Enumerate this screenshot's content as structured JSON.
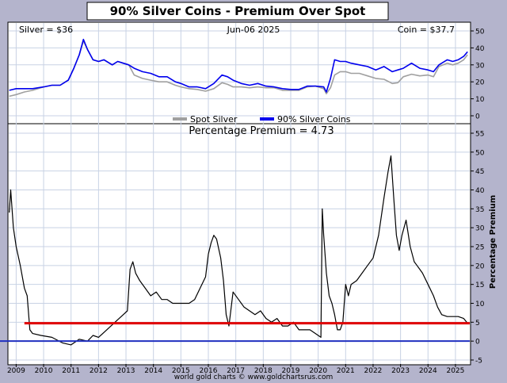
{
  "title": "90% Silver Coins - Premium Over Spot",
  "footer": "world gold charts © www.goldchartsrus.com",
  "colors": {
    "background": "#b4b4cc",
    "plot_bg": "#ffffff",
    "grid": "#c8d2e4",
    "spot": "#a0a0a0",
    "coin": "#0000ee",
    "premium": "#000000",
    "avg_line": "#e00000",
    "zero_line": "#2030c0"
  },
  "chart_data": [
    {
      "type": "line",
      "info_left": "Silver = $36",
      "info_center": "Jun-06  2025",
      "info_right": "Coin = $37.7",
      "y_ticks": [
        0,
        10,
        20,
        30,
        40,
        50
      ],
      "ylim": [
        -5,
        55
      ],
      "xlim": [
        2008.7,
        2025.55
      ],
      "legend": "bottom-center",
      "grid": true,
      "series": [
        {
          "name": "Spot Silver",
          "x": [
            2008.75,
            2009.0,
            2009.3,
            2009.6,
            2010.0,
            2010.3,
            2010.6,
            2010.9,
            2011.1,
            2011.3,
            2011.45,
            2011.6,
            2011.8,
            2012.0,
            2012.2,
            2012.5,
            2012.7,
            2012.9,
            2013.1,
            2013.3,
            2013.6,
            2013.9,
            2014.2,
            2014.5,
            2014.8,
            2015.0,
            2015.3,
            2015.6,
            2015.9,
            2016.2,
            2016.5,
            2016.7,
            2016.9,
            2017.2,
            2017.5,
            2017.8,
            2018.1,
            2018.4,
            2018.7,
            2019.0,
            2019.3,
            2019.6,
            2019.9,
            2020.2,
            2020.3,
            2020.45,
            2020.6,
            2020.8,
            2021.0,
            2021.2,
            2021.5,
            2021.8,
            2022.1,
            2022.4,
            2022.7,
            2022.9,
            2023.1,
            2023.4,
            2023.7,
            2024.0,
            2024.2,
            2024.4,
            2024.7,
            2024.9,
            2025.1,
            2025.3,
            2025.44
          ],
          "y": [
            11.5,
            12.5,
            14,
            15,
            17,
            18,
            18,
            21,
            28,
            36,
            44,
            39,
            33,
            32,
            33,
            30,
            32,
            31,
            30,
            24,
            22,
            21,
            20,
            20,
            18,
            17,
            16,
            15.5,
            14.5,
            16,
            19.5,
            18.5,
            17,
            17,
            16.5,
            17,
            16.5,
            16.5,
            15,
            15,
            15,
            17,
            17.5,
            16,
            13,
            16.5,
            24,
            26,
            26,
            25,
            25,
            23.5,
            22,
            21.5,
            19,
            19.5,
            23,
            24.5,
            23.5,
            24,
            23,
            29,
            31,
            30,
            31,
            33,
            36
          ]
        },
        {
          "name": "90% Silver Coins",
          "x": [
            2008.75,
            2009.0,
            2009.3,
            2009.6,
            2010.0,
            2010.3,
            2010.6,
            2010.9,
            2011.1,
            2011.3,
            2011.45,
            2011.6,
            2011.8,
            2012.0,
            2012.2,
            2012.5,
            2012.7,
            2012.9,
            2013.1,
            2013.3,
            2013.6,
            2013.9,
            2014.2,
            2014.5,
            2014.8,
            2015.0,
            2015.3,
            2015.6,
            2015.9,
            2016.2,
            2016.5,
            2016.7,
            2016.9,
            2017.2,
            2017.5,
            2017.8,
            2018.1,
            2018.4,
            2018.7,
            2019.0,
            2019.3,
            2019.6,
            2019.9,
            2020.2,
            2020.3,
            2020.45,
            2020.6,
            2020.8,
            2021.0,
            2021.2,
            2021.5,
            2021.8,
            2022.1,
            2022.4,
            2022.7,
            2022.9,
            2023.1,
            2023.4,
            2023.7,
            2024.0,
            2024.2,
            2024.4,
            2024.7,
            2024.9,
            2025.1,
            2025.3,
            2025.44
          ],
          "y": [
            15,
            16,
            16,
            16,
            17,
            18,
            18,
            21,
            28,
            36,
            45,
            39,
            33,
            32,
            33,
            30,
            32,
            31,
            30,
            28,
            26,
            25,
            23,
            23,
            20,
            19,
            17,
            17,
            16,
            19,
            24,
            23,
            21,
            19,
            18,
            19,
            17.5,
            17,
            16,
            15.5,
            15.5,
            17.5,
            17.5,
            17,
            14,
            22,
            33,
            32,
            32,
            31,
            30,
            29,
            27,
            29,
            26,
            27,
            28,
            31,
            28,
            27,
            26,
            30,
            33,
            32,
            33,
            35,
            37.7
          ]
        }
      ]
    },
    {
      "type": "line",
      "title": "Percentage Premium = 4.73",
      "ylabel": "Percentage Premium",
      "y_ticks": [
        -5,
        0,
        5,
        10,
        15,
        20,
        25,
        30,
        35,
        40,
        45,
        50,
        55
      ],
      "x_ticks": [
        2009,
        2010,
        2011,
        2012,
        2013,
        2014,
        2015,
        2016,
        2017,
        2018,
        2019,
        2020,
        2021,
        2022,
        2023,
        2024,
        2025
      ],
      "ylim": [
        -5,
        57
      ],
      "xlim": [
        2008.7,
        2025.55
      ],
      "grid": true,
      "reference_lines": [
        4.73,
        0
      ],
      "series": [
        {
          "x": [
            2008.75,
            2008.8,
            2008.9,
            2009.0,
            2009.15,
            2009.3,
            2009.4,
            2009.5,
            2009.6,
            2009.9,
            2010.3,
            2010.7,
            2011.0,
            2011.3,
            2011.6,
            2011.8,
            2012.0,
            2012.3,
            2012.6,
            2012.9,
            2013.05,
            2013.15,
            2013.25,
            2013.35,
            2013.5,
            2013.7,
            2013.9,
            2014.1,
            2014.3,
            2014.5,
            2014.7,
            2014.9,
            2015.1,
            2015.3,
            2015.5,
            2015.7,
            2015.9,
            2016.0,
            2016.1,
            2016.2,
            2016.3,
            2016.45,
            2016.55,
            2016.65,
            2016.75,
            2016.9,
            2017.1,
            2017.3,
            2017.5,
            2017.7,
            2017.9,
            2018.1,
            2018.3,
            2018.5,
            2018.7,
            2018.9,
            2019.1,
            2019.3,
            2019.5,
            2019.7,
            2019.9,
            2020.1,
            2020.15,
            2020.2,
            2020.25,
            2020.3,
            2020.4,
            2020.5,
            2020.6,
            2020.7,
            2020.8,
            2020.9,
            2021.0,
            2021.1,
            2021.2,
            2021.4,
            2021.6,
            2021.8,
            2022.0,
            2022.2,
            2022.4,
            2022.55,
            2022.65,
            2022.75,
            2022.85,
            2022.95,
            2023.05,
            2023.2,
            2023.35,
            2023.5,
            2023.6,
            2023.7,
            2023.8,
            2024.0,
            2024.2,
            2024.35,
            2024.5,
            2024.7,
            2024.9,
            2025.1,
            2025.3,
            2025.44
          ],
          "y": [
            34,
            40,
            30,
            25,
            20,
            14,
            12,
            3,
            2,
            1.5,
            1,
            -0.5,
            -1,
            0.5,
            0,
            1.5,
            1,
            3,
            5,
            7,
            8,
            19,
            21,
            18,
            16,
            14,
            12,
            13,
            11,
            11,
            10,
            10,
            10,
            10,
            11,
            14,
            17,
            23,
            26,
            28,
            27,
            22,
            16,
            7,
            4,
            13,
            11,
            9,
            8,
            7,
            8,
            6,
            5,
            6,
            4,
            4,
            5,
            3,
            3,
            3,
            2,
            1,
            35,
            28,
            23,
            18,
            12,
            10,
            7,
            3,
            3,
            5,
            15,
            12,
            15,
            16,
            18,
            20,
            22,
            28,
            38,
            45,
            49,
            38,
            28,
            24,
            28,
            32,
            25,
            21,
            20,
            19,
            18,
            15,
            12,
            9,
            7,
            6.5,
            6.5,
            6.5,
            6,
            4.73
          ]
        }
      ]
    }
  ]
}
